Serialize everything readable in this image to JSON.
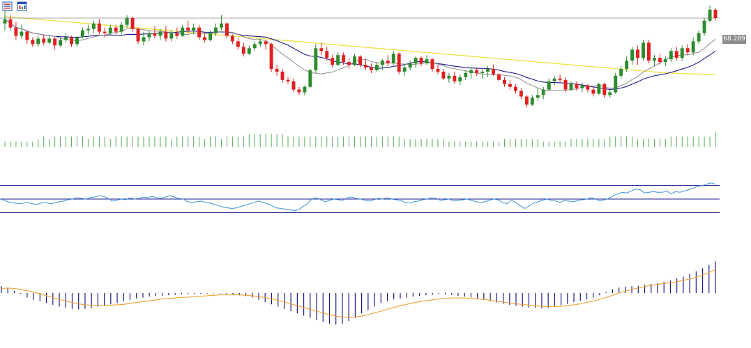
{
  "toolbar": {
    "icons": [
      "list-menu-icon",
      "chart-window-icon"
    ],
    "colors": {
      "list": "#1f4fb5",
      "window": "#1f4fb5",
      "accent": "#d62c2c"
    }
  },
  "price_tag": {
    "label": "68.289",
    "value": 68.289,
    "color": "#8c8c8c"
  },
  "colors": {
    "up": "#2e8b2e",
    "down": "#e0201f",
    "ma_fast": "#8c8c8c",
    "ma_mid": "#1a1a8c",
    "ma_slow": "#f0e040",
    "last_price_line": "#8c8c8c",
    "volume": "#55aa55",
    "rsi_line": "#3a8fd8",
    "rsi_levels": "#1a1a8c",
    "macd_hist": "#1a1a8c",
    "macd_signal": "#f0a030"
  },
  "chart_data": [
    {
      "type": "candlestick",
      "panel": "price",
      "title": "",
      "ylim": [
        60.0,
        69.4
      ],
      "last_price": 68.289,
      "candles": [
        [
          67.9,
          68.9,
          67.4,
          68.2
        ],
        [
          68.2,
          68.5,
          67.4,
          67.6
        ],
        [
          67.6,
          68.0,
          66.7,
          67.0
        ],
        [
          67.0,
          67.8,
          66.8,
          67.3
        ],
        [
          67.3,
          67.4,
          66.4,
          66.7
        ],
        [
          66.7,
          66.9,
          66.2,
          66.4
        ],
        [
          66.4,
          67.0,
          66.2,
          66.8
        ],
        [
          66.8,
          67.1,
          66.3,
          66.5
        ],
        [
          66.5,
          67.0,
          66.4,
          66.8
        ],
        [
          66.8,
          66.9,
          66.0,
          66.3
        ],
        [
          66.3,
          66.9,
          66.2,
          66.7
        ],
        [
          66.7,
          67.2,
          66.5,
          66.9
        ],
        [
          66.9,
          67.0,
          66.2,
          66.4
        ],
        [
          66.4,
          67.0,
          66.2,
          66.9
        ],
        [
          66.9,
          67.6,
          66.8,
          67.4
        ],
        [
          67.4,
          67.8,
          67.1,
          67.5
        ],
        [
          67.5,
          68.1,
          67.2,
          67.9
        ],
        [
          67.9,
          68.2,
          67.1,
          67.3
        ],
        [
          67.3,
          67.6,
          66.9,
          67.2
        ],
        [
          67.2,
          67.8,
          67.0,
          67.6
        ],
        [
          67.6,
          67.8,
          67.1,
          67.3
        ],
        [
          67.3,
          68.0,
          67.1,
          67.8
        ],
        [
          67.8,
          68.5,
          67.6,
          68.3
        ],
        [
          68.3,
          68.4,
          67.3,
          67.5
        ],
        [
          67.5,
          67.6,
          66.4,
          66.6
        ],
        [
          66.6,
          67.3,
          66.3,
          66.9
        ],
        [
          66.9,
          67.4,
          66.6,
          67.2
        ],
        [
          67.2,
          67.7,
          66.8,
          67.0
        ],
        [
          67.0,
          67.5,
          66.7,
          67.3
        ],
        [
          67.3,
          67.7,
          66.6,
          66.8
        ],
        [
          66.8,
          67.4,
          66.6,
          67.2
        ],
        [
          67.2,
          67.6,
          66.8,
          67.0
        ],
        [
          67.0,
          67.8,
          66.9,
          67.6
        ],
        [
          67.6,
          68.1,
          67.2,
          67.4
        ],
        [
          67.4,
          67.9,
          67.1,
          67.6
        ],
        [
          67.6,
          67.8,
          66.7,
          66.9
        ],
        [
          66.9,
          67.2,
          66.5,
          66.7
        ],
        [
          66.7,
          67.4,
          66.6,
          67.2
        ],
        [
          67.2,
          67.9,
          67.0,
          67.6
        ],
        [
          67.6,
          68.5,
          67.4,
          67.9
        ],
        [
          67.9,
          68.0,
          66.8,
          67.0
        ],
        [
          67.0,
          67.1,
          66.4,
          66.6
        ],
        [
          66.6,
          66.8,
          66.0,
          66.2
        ],
        [
          66.2,
          66.5,
          65.5,
          65.7
        ],
        [
          65.7,
          66.3,
          65.6,
          66.1
        ],
        [
          66.1,
          66.6,
          65.9,
          66.4
        ],
        [
          66.4,
          66.8,
          66.2,
          66.6
        ],
        [
          66.6,
          66.7,
          66.0,
          66.4
        ],
        [
          66.4,
          66.5,
          64.4,
          64.6
        ],
        [
          64.6,
          64.9,
          64.1,
          64.4
        ],
        [
          64.4,
          64.6,
          63.6,
          63.8
        ],
        [
          63.8,
          64.0,
          63.5,
          63.7
        ],
        [
          63.7,
          63.9,
          62.9,
          63.1
        ],
        [
          63.1,
          63.3,
          62.7,
          62.9
        ],
        [
          62.9,
          63.4,
          62.7,
          63.3
        ],
        [
          63.3,
          64.6,
          63.2,
          64.5
        ],
        [
          64.5,
          66.4,
          64.3,
          66.1
        ],
        [
          66.1,
          66.5,
          65.6,
          65.9
        ],
        [
          65.9,
          66.2,
          65.2,
          65.4
        ],
        [
          65.4,
          65.6,
          64.7,
          64.9
        ],
        [
          64.9,
          65.8,
          64.8,
          65.6
        ],
        [
          65.6,
          65.8,
          64.9,
          65.1
        ],
        [
          65.1,
          65.4,
          64.6,
          64.9
        ],
        [
          64.9,
          65.7,
          64.8,
          65.5
        ],
        [
          65.5,
          65.6,
          64.7,
          64.9
        ],
        [
          64.9,
          65.3,
          64.5,
          64.7
        ],
        [
          64.7,
          65.0,
          64.3,
          64.5
        ],
        [
          64.5,
          65.1,
          64.4,
          64.9
        ],
        [
          64.9,
          65.3,
          64.5,
          65.2
        ],
        [
          65.2,
          65.6,
          64.8,
          65.0
        ],
        [
          65.0,
          65.9,
          64.9,
          65.7
        ],
        [
          65.7,
          65.8,
          64.2,
          64.4
        ],
        [
          64.4,
          64.9,
          64.1,
          64.7
        ],
        [
          64.7,
          65.2,
          64.5,
          65.0
        ],
        [
          65.0,
          65.5,
          64.7,
          65.4
        ],
        [
          65.4,
          65.5,
          64.8,
          65.0
        ],
        [
          65.0,
          65.6,
          64.9,
          65.3
        ],
        [
          65.3,
          65.4,
          64.4,
          64.6
        ],
        [
          64.6,
          64.9,
          64.2,
          64.4
        ],
        [
          64.4,
          64.6,
          63.8,
          63.9
        ],
        [
          63.9,
          64.3,
          63.6,
          64.1
        ],
        [
          64.1,
          64.4,
          63.5,
          63.7
        ],
        [
          63.7,
          64.2,
          63.4,
          64.0
        ],
        [
          64.0,
          64.5,
          63.8,
          64.3
        ],
        [
          64.3,
          64.7,
          63.9,
          64.5
        ],
        [
          64.5,
          64.7,
          64.1,
          64.3
        ],
        [
          64.3,
          64.6,
          63.9,
          64.4
        ],
        [
          64.4,
          64.8,
          64.0,
          64.6
        ],
        [
          64.6,
          64.9,
          64.1,
          64.2
        ],
        [
          64.2,
          64.3,
          63.7,
          63.8
        ],
        [
          63.8,
          64.0,
          63.3,
          63.5
        ],
        [
          63.5,
          63.8,
          63.1,
          63.3
        ],
        [
          63.3,
          63.5,
          62.8,
          63.0
        ],
        [
          63.0,
          63.2,
          62.4,
          62.6
        ],
        [
          62.6,
          62.7,
          61.8,
          62.0
        ],
        [
          62.0,
          62.7,
          61.9,
          62.5
        ],
        [
          62.5,
          63.2,
          62.3,
          62.7
        ],
        [
          62.7,
          63.3,
          62.4,
          63.1
        ],
        [
          63.1,
          63.9,
          63.0,
          63.7
        ],
        [
          63.7,
          64.1,
          63.4,
          63.9
        ],
        [
          63.9,
          64.2,
          63.6,
          63.8
        ],
        [
          63.8,
          64.0,
          62.9,
          63.1
        ],
        [
          63.1,
          63.7,
          63.0,
          63.5
        ],
        [
          63.5,
          63.7,
          63.0,
          63.2
        ],
        [
          63.2,
          63.6,
          62.9,
          63.4
        ],
        [
          63.4,
          63.5,
          62.9,
          63.1
        ],
        [
          63.1,
          63.3,
          62.6,
          62.8
        ],
        [
          62.8,
          63.6,
          62.7,
          63.5
        ],
        [
          63.5,
          63.6,
          62.5,
          62.7
        ],
        [
          62.7,
          63.1,
          62.5,
          62.9
        ],
        [
          62.9,
          64.3,
          62.8,
          64.1
        ],
        [
          64.1,
          64.8,
          63.9,
          64.6
        ],
        [
          64.6,
          65.5,
          64.4,
          65.2
        ],
        [
          65.2,
          66.2,
          64.9,
          66.0
        ],
        [
          66.0,
          66.3,
          64.9,
          65.4
        ],
        [
          65.4,
          66.7,
          65.2,
          66.5
        ],
        [
          66.5,
          66.7,
          65.0,
          65.2
        ],
        [
          65.2,
          65.6,
          64.8,
          65.4
        ],
        [
          65.4,
          65.7,
          64.9,
          65.1
        ],
        [
          65.1,
          65.5,
          64.8,
          65.3
        ],
        [
          65.3,
          66.1,
          65.1,
          65.9
        ],
        [
          65.9,
          66.2,
          65.2,
          65.4
        ],
        [
          65.4,
          66.3,
          65.2,
          66.1
        ],
        [
          66.1,
          66.4,
          65.6,
          65.8
        ],
        [
          65.8,
          66.9,
          65.6,
          66.6
        ],
        [
          66.6,
          67.4,
          66.4,
          67.2
        ],
        [
          67.2,
          68.3,
          67.0,
          68.1
        ],
        [
          68.1,
          69.2,
          68.0,
          68.9
        ],
        [
          68.9,
          69.0,
          68.1,
          68.29
        ]
      ],
      "volume": [
        2,
        2,
        2,
        2,
        2,
        2,
        3,
        4,
        3,
        4,
        4,
        4,
        4,
        4,
        4,
        3,
        4,
        4,
        4,
        3,
        4,
        4,
        4,
        4,
        4,
        4,
        4,
        4,
        4,
        4,
        3,
        4,
        4,
        4,
        4,
        4,
        3,
        4,
        4,
        3,
        4,
        4,
        4,
        4,
        5,
        5,
        5,
        5,
        5,
        5,
        5,
        4,
        4,
        4,
        4,
        4,
        4,
        4,
        4,
        4,
        4,
        4,
        4,
        4,
        4,
        4,
        4,
        4,
        4,
        4,
        4,
        4,
        3,
        3,
        3,
        3,
        3,
        3,
        3,
        3,
        2,
        2,
        2,
        2,
        2,
        2,
        2,
        2,
        2,
        2,
        3,
        3,
        3,
        3,
        3,
        3,
        3,
        2,
        2,
        2,
        2,
        2,
        3,
        3,
        3,
        3,
        3,
        3,
        3,
        4,
        4,
        4,
        4,
        4,
        3,
        3,
        3,
        3,
        3,
        3,
        4,
        4,
        4,
        4,
        4,
        4,
        4,
        4,
        6,
        1
      ]
    },
    {
      "type": "line",
      "panel": "rsi",
      "ylim": [
        20,
        80
      ],
      "levels": [
        70,
        50,
        30
      ],
      "values": [
        50,
        47,
        45,
        44,
        43,
        44,
        45,
        43,
        42,
        44,
        45,
        43,
        44,
        46,
        47,
        49,
        50,
        52,
        51,
        50,
        52,
        53,
        55,
        54,
        51,
        47,
        48,
        50,
        49,
        52,
        50,
        51,
        53,
        52,
        54,
        52,
        51,
        53,
        55,
        53,
        51,
        50,
        46,
        45,
        46,
        47,
        45,
        44,
        42,
        40,
        38,
        37,
        36,
        37,
        39,
        41,
        43,
        45,
        47,
        45,
        43,
        40,
        37,
        36,
        35,
        34,
        33,
        34,
        39,
        43,
        50,
        52,
        49,
        46,
        48,
        50,
        49,
        48,
        52,
        53,
        51,
        50,
        48,
        47,
        49,
        51,
        50,
        52,
        50,
        49,
        48,
        45,
        44,
        46,
        47,
        49,
        50,
        52,
        51,
        48,
        49,
        50,
        47,
        48,
        49,
        50,
        48,
        46,
        45,
        46,
        48,
        50,
        49,
        45,
        43,
        48,
        45,
        40,
        36,
        40,
        44,
        46,
        48,
        50,
        48,
        47,
        45,
        48,
        47,
        46,
        48,
        49,
        50,
        52,
        50,
        47,
        49,
        51,
        55,
        58,
        60,
        59,
        62,
        65,
        64,
        59,
        60,
        61,
        60,
        60,
        62,
        58,
        61,
        60,
        62,
        64,
        66,
        69,
        70,
        72,
        74,
        72
      ]
    },
    {
      "type": "bar+line",
      "panel": "macd",
      "ylim": [
        -1.0,
        1.0
      ],
      "histogram": [
        0.15,
        0.12,
        0.05,
        -0.02,
        -0.1,
        -0.15,
        -0.18,
        -0.22,
        -0.26,
        -0.3,
        -0.33,
        -0.35,
        -0.36,
        -0.35,
        -0.33,
        -0.3,
        -0.28,
        -0.25,
        -0.22,
        -0.18,
        -0.15,
        -0.12,
        -0.1,
        -0.08,
        -0.07,
        -0.06,
        -0.05,
        -0.04,
        -0.03,
        -0.02,
        -0.02,
        -0.02,
        -0.01,
        -0.01,
        -0.01,
        -0.02,
        -0.03,
        -0.05,
        -0.07,
        -0.1,
        -0.15,
        -0.2,
        -0.25,
        -0.3,
        -0.35,
        -0.4,
        -0.45,
        -0.5,
        -0.55,
        -0.6,
        -0.64,
        -0.68,
        -0.7,
        -0.68,
        -0.62,
        -0.55,
        -0.45,
        -0.38,
        -0.3,
        -0.22,
        -0.18,
        -0.14,
        -0.12,
        -0.1,
        -0.08,
        -0.06,
        -0.05,
        -0.04,
        -0.03,
        -0.03,
        -0.04,
        -0.06,
        -0.08,
        -0.1,
        -0.12,
        -0.15,
        -0.18,
        -0.21,
        -0.24,
        -0.26,
        -0.28,
        -0.3,
        -0.32,
        -0.33,
        -0.34,
        -0.33,
        -0.3,
        -0.27,
        -0.24,
        -0.2,
        -0.17,
        -0.14,
        -0.1,
        -0.05,
        0.02,
        0.08,
        0.12,
        0.14,
        0.15,
        0.16,
        0.18,
        0.2,
        0.22,
        0.25,
        0.28,
        0.32,
        0.36,
        0.42,
        0.48,
        0.55,
        0.62,
        0.7
      ],
      "signal": [
        0.1,
        0.11,
        0.1,
        0.08,
        0.05,
        0.02,
        -0.02,
        -0.06,
        -0.1,
        -0.14,
        -0.18,
        -0.21,
        -0.24,
        -0.26,
        -0.27,
        -0.28,
        -0.28,
        -0.27,
        -0.26,
        -0.25,
        -0.23,
        -0.21,
        -0.19,
        -0.17,
        -0.15,
        -0.13,
        -0.12,
        -0.11,
        -0.1,
        -0.09,
        -0.08,
        -0.07,
        -0.06,
        -0.05,
        -0.04,
        -0.04,
        -0.04,
        -0.04,
        -0.05,
        -0.06,
        -0.08,
        -0.1,
        -0.13,
        -0.16,
        -0.2,
        -0.24,
        -0.28,
        -0.32,
        -0.36,
        -0.4,
        -0.44,
        -0.48,
        -0.51,
        -0.53,
        -0.54,
        -0.53,
        -0.51,
        -0.48,
        -0.44,
        -0.4,
        -0.36,
        -0.32,
        -0.28,
        -0.25,
        -0.22,
        -0.19,
        -0.17,
        -0.15,
        -0.13,
        -0.12,
        -0.11,
        -0.11,
        -0.11,
        -0.12,
        -0.13,
        -0.14,
        -0.16,
        -0.18,
        -0.2,
        -0.22,
        -0.24,
        -0.25,
        -0.27,
        -0.28,
        -0.29,
        -0.3,
        -0.3,
        -0.29,
        -0.28,
        -0.26,
        -0.24,
        -0.21,
        -0.18,
        -0.14,
        -0.1,
        -0.05,
        0.0,
        0.04,
        0.08,
        0.11,
        0.14,
        0.17,
        0.19,
        0.21,
        0.23,
        0.25,
        0.28,
        0.31,
        0.35,
        0.4,
        0.45,
        0.52
      ]
    }
  ]
}
